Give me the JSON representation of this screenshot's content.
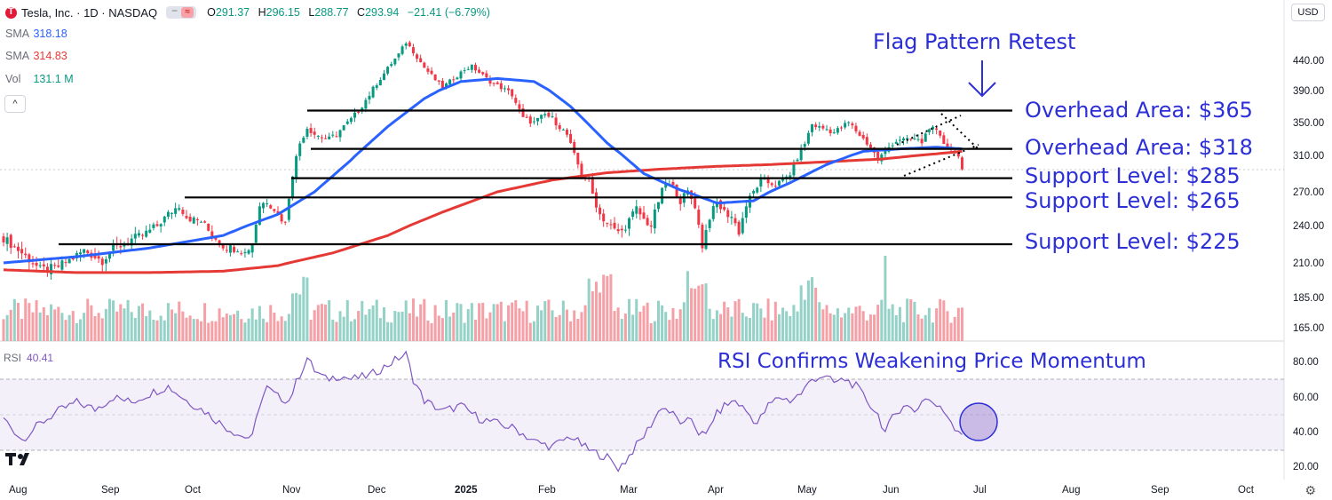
{
  "header": {
    "symbol_line": "Tesla, Inc. · 1D · NASDAQ",
    "toggle_glyph": "≈",
    "ohlc": [
      {
        "k": "O",
        "v": "291.37"
      },
      {
        "k": "H",
        "v": "296.15"
      },
      {
        "k": "L",
        "v": "288.77"
      },
      {
        "k": "C",
        "v": "293.94"
      },
      {
        "k": "",
        "v": "−21.41 (−6.79%)"
      }
    ]
  },
  "indicators": {
    "sma1": {
      "label": "SMA",
      "value": "318.18",
      "color": "#2962ff"
    },
    "sma2": {
      "label": "SMA",
      "value": "314.83",
      "color": "#e53935"
    },
    "vol": {
      "label": "Vol",
      "value": "131.1 M",
      "color": "#089981"
    },
    "collapse_glyph": "^"
  },
  "currency_button": "USD",
  "colors": {
    "up": "#089981",
    "down": "#f23645",
    "sma50": "#2962ff",
    "sma200": "#e53935",
    "annotation": "#2c2fd6",
    "rsi": "#7e57c2",
    "vol_up": "#94d1c7",
    "vol_down": "#f5a0a6"
  },
  "chart_data": {
    "type": "candlestick",
    "price_axis": {
      "ticks": [
        "440.00",
        "390.00",
        "350.00",
        "310.00",
        "270.00",
        "240.00",
        "210.00",
        "185.00",
        "165.00"
      ]
    },
    "time_axis": {
      "labels": [
        "Aug",
        "Sep",
        "Oct",
        "Nov",
        "Dec",
        "2025",
        "Feb",
        "Mar",
        "Apr",
        "May",
        "Jun",
        "Jul",
        "Aug",
        "Sep",
        "Oct"
      ]
    },
    "annotations": {
      "title": "Flag Pattern Retest",
      "levels": [
        {
          "label": "Overhead Area: $365",
          "price": 365
        },
        {
          "label": "Overhead Area: $318",
          "price": 318
        },
        {
          "label": "Support Level: $285",
          "price": 285
        },
        {
          "label": "Support Level: $265",
          "price": 265
        },
        {
          "label": "Support Level: $225",
          "price": 225
        }
      ],
      "rsi_note": "RSI Confirms Weakening Price Momentum"
    },
    "close_series": [
      [
        0,
        230
      ],
      [
        5,
        218
      ],
      [
        10,
        205
      ],
      [
        14,
        206
      ],
      [
        18,
        212
      ],
      [
        22,
        220
      ],
      [
        25,
        215
      ],
      [
        27,
        212
      ],
      [
        30,
        222
      ],
      [
        33,
        225
      ],
      [
        35,
        229
      ],
      [
        38,
        232
      ],
      [
        42,
        240
      ],
      [
        45,
        250
      ],
      [
        48,
        258
      ],
      [
        50,
        248
      ],
      [
        52,
        245
      ],
      [
        54,
        244
      ],
      [
        56,
        236
      ],
      [
        58,
        230
      ],
      [
        60,
        224
      ],
      [
        62,
        222
      ],
      [
        64,
        222
      ],
      [
        66,
        218
      ],
      [
        68,
        226
      ],
      [
        70,
        258
      ],
      [
        72,
        262
      ],
      [
        74,
        255
      ],
      [
        75,
        250
      ],
      [
        77,
        242
      ],
      [
        79,
        290
      ],
      [
        81,
        325
      ],
      [
        83,
        344
      ],
      [
        85,
        336
      ],
      [
        87,
        332
      ],
      [
        89,
        330
      ],
      [
        91,
        336
      ],
      [
        93,
        345
      ],
      [
        95,
        354
      ],
      [
        97,
        365
      ],
      [
        100,
        385
      ],
      [
        103,
        410
      ],
      [
        106,
        435
      ],
      [
        108,
        450
      ],
      [
        110,
        470
      ],
      [
        112,
        455
      ],
      [
        115,
        428
      ],
      [
        118,
        408
      ],
      [
        120,
        395
      ],
      [
        123,
        410
      ],
      [
        126,
        425
      ],
      [
        128,
        430
      ],
      [
        130,
        420
      ],
      [
        133,
        405
      ],
      [
        136,
        395
      ],
      [
        139,
        385
      ],
      [
        142,
        355
      ],
      [
        145,
        350
      ],
      [
        148,
        360
      ],
      [
        150,
        355
      ],
      [
        152,
        345
      ],
      [
        154,
        335
      ],
      [
        156,
        310
      ],
      [
        158,
        290
      ],
      [
        160,
        282
      ],
      [
        161,
        268
      ],
      [
        163,
        250
      ],
      [
        165,
        242
      ],
      [
        167,
        236
      ],
      [
        169,
        235
      ],
      [
        171,
        245
      ],
      [
        173,
        255
      ],
      [
        175,
        245
      ],
      [
        177,
        240
      ],
      [
        179,
        262
      ],
      [
        181,
        280
      ],
      [
        183,
        275
      ],
      [
        185,
        262
      ],
      [
        187,
        270
      ],
      [
        189,
        258
      ],
      [
        190,
        240
      ],
      [
        191,
        224
      ],
      [
        193,
        248
      ],
      [
        195,
        260
      ],
      [
        197,
        252
      ],
      [
        199,
        248
      ],
      [
        201,
        235
      ],
      [
        203,
        258
      ],
      [
        205,
        270
      ],
      [
        207,
        282
      ],
      [
        209,
        280
      ],
      [
        211,
        278
      ],
      [
        213,
        282
      ],
      [
        215,
        290
      ],
      [
        217,
        308
      ],
      [
        219,
        325
      ],
      [
        221,
        348
      ],
      [
        223,
        344
      ],
      [
        225,
        342
      ],
      [
        227,
        338
      ],
      [
        229,
        344
      ],
      [
        231,
        350
      ],
      [
        233,
        340
      ],
      [
        235,
        330
      ],
      [
        237,
        320
      ],
      [
        239,
        305
      ],
      [
        241,
        315
      ],
      [
        243,
        325
      ],
      [
        245,
        330
      ],
      [
        247,
        328
      ],
      [
        249,
        330
      ],
      [
        251,
        326
      ],
      [
        253,
        345
      ],
      [
        255,
        338
      ],
      [
        257,
        325
      ],
      [
        259,
        318
      ],
      [
        261,
        312
      ],
      [
        262,
        294
      ]
    ],
    "sma50": [
      [
        0,
        210
      ],
      [
        20,
        215
      ],
      [
        40,
        222
      ],
      [
        60,
        232
      ],
      [
        75,
        250
      ],
      [
        85,
        270
      ],
      [
        95,
        305
      ],
      [
        105,
        345
      ],
      [
        115,
        380
      ],
      [
        125,
        405
      ],
      [
        135,
        410
      ],
      [
        145,
        405
      ],
      [
        155,
        370
      ],
      [
        165,
        325
      ],
      [
        175,
        290
      ],
      [
        185,
        272
      ],
      [
        195,
        260
      ],
      [
        205,
        262
      ],
      [
        215,
        280
      ],
      [
        225,
        300
      ],
      [
        235,
        315
      ],
      [
        245,
        318
      ],
      [
        255,
        320
      ],
      [
        262,
        318
      ]
    ],
    "sma200": [
      [
        0,
        205
      ],
      [
        20,
        203
      ],
      [
        40,
        203
      ],
      [
        60,
        204
      ],
      [
        75,
        208
      ],
      [
        90,
        218
      ],
      [
        105,
        232
      ],
      [
        120,
        252
      ],
      [
        135,
        270
      ],
      [
        150,
        283
      ],
      [
        165,
        291
      ],
      [
        180,
        295
      ],
      [
        195,
        298
      ],
      [
        210,
        300
      ],
      [
        225,
        303
      ],
      [
        240,
        306
      ],
      [
        255,
        312
      ],
      [
        262,
        315
      ]
    ],
    "rsi": {
      "label": "RSI",
      "value": "40.41",
      "ticks": [
        "80.00",
        "60.00",
        "40.00",
        "20.00"
      ],
      "band": [
        30,
        70
      ],
      "series": [
        [
          0,
          48
        ],
        [
          5,
          36
        ],
        [
          10,
          45
        ],
        [
          15,
          52
        ],
        [
          20,
          57
        ],
        [
          25,
          53
        ],
        [
          30,
          60
        ],
        [
          35,
          57
        ],
        [
          40,
          62
        ],
        [
          45,
          66
        ],
        [
          50,
          58
        ],
        [
          55,
          52
        ],
        [
          60,
          44
        ],
        [
          65,
          38
        ],
        [
          68,
          37
        ],
        [
          70,
          56
        ],
        [
          72,
          65
        ],
        [
          75,
          60
        ],
        [
          78,
          58
        ],
        [
          80,
          68
        ],
        [
          83,
          82
        ],
        [
          85,
          75
        ],
        [
          88,
          70
        ],
        [
          92,
          72
        ],
        [
          95,
          70
        ],
        [
          100,
          72
        ],
        [
          105,
          78
        ],
        [
          108,
          82
        ],
        [
          110,
          84
        ],
        [
          112,
          70
        ],
        [
          115,
          58
        ],
        [
          120,
          52
        ],
        [
          125,
          55
        ],
        [
          130,
          48
        ],
        [
          135,
          45
        ],
        [
          140,
          42
        ],
        [
          145,
          35
        ],
        [
          150,
          32
        ],
        [
          155,
          38
        ],
        [
          160,
          30
        ],
        [
          165,
          26
        ],
        [
          168,
          20
        ],
        [
          170,
          24
        ],
        [
          172,
          30
        ],
        [
          175,
          38
        ],
        [
          178,
          48
        ],
        [
          180,
          55
        ],
        [
          183,
          50
        ],
        [
          186,
          44
        ],
        [
          188,
          48
        ],
        [
          190,
          40
        ],
        [
          192,
          38
        ],
        [
          194,
          48
        ],
        [
          197,
          55
        ],
        [
          200,
          58
        ],
        [
          203,
          52
        ],
        [
          206,
          45
        ],
        [
          209,
          55
        ],
        [
          212,
          60
        ],
        [
          215,
          58
        ],
        [
          218,
          62
        ],
        [
          221,
          70
        ],
        [
          224,
          72
        ],
        [
          227,
          68
        ],
        [
          230,
          70
        ],
        [
          233,
          66
        ],
        [
          236,
          58
        ],
        [
          239,
          50
        ],
        [
          241,
          40
        ],
        [
          243,
          48
        ],
        [
          246,
          56
        ],
        [
          249,
          52
        ],
        [
          252,
          60
        ],
        [
          255,
          55
        ],
        [
          258,
          50
        ],
        [
          260,
          43
        ],
        [
          262,
          40
        ]
      ]
    }
  }
}
